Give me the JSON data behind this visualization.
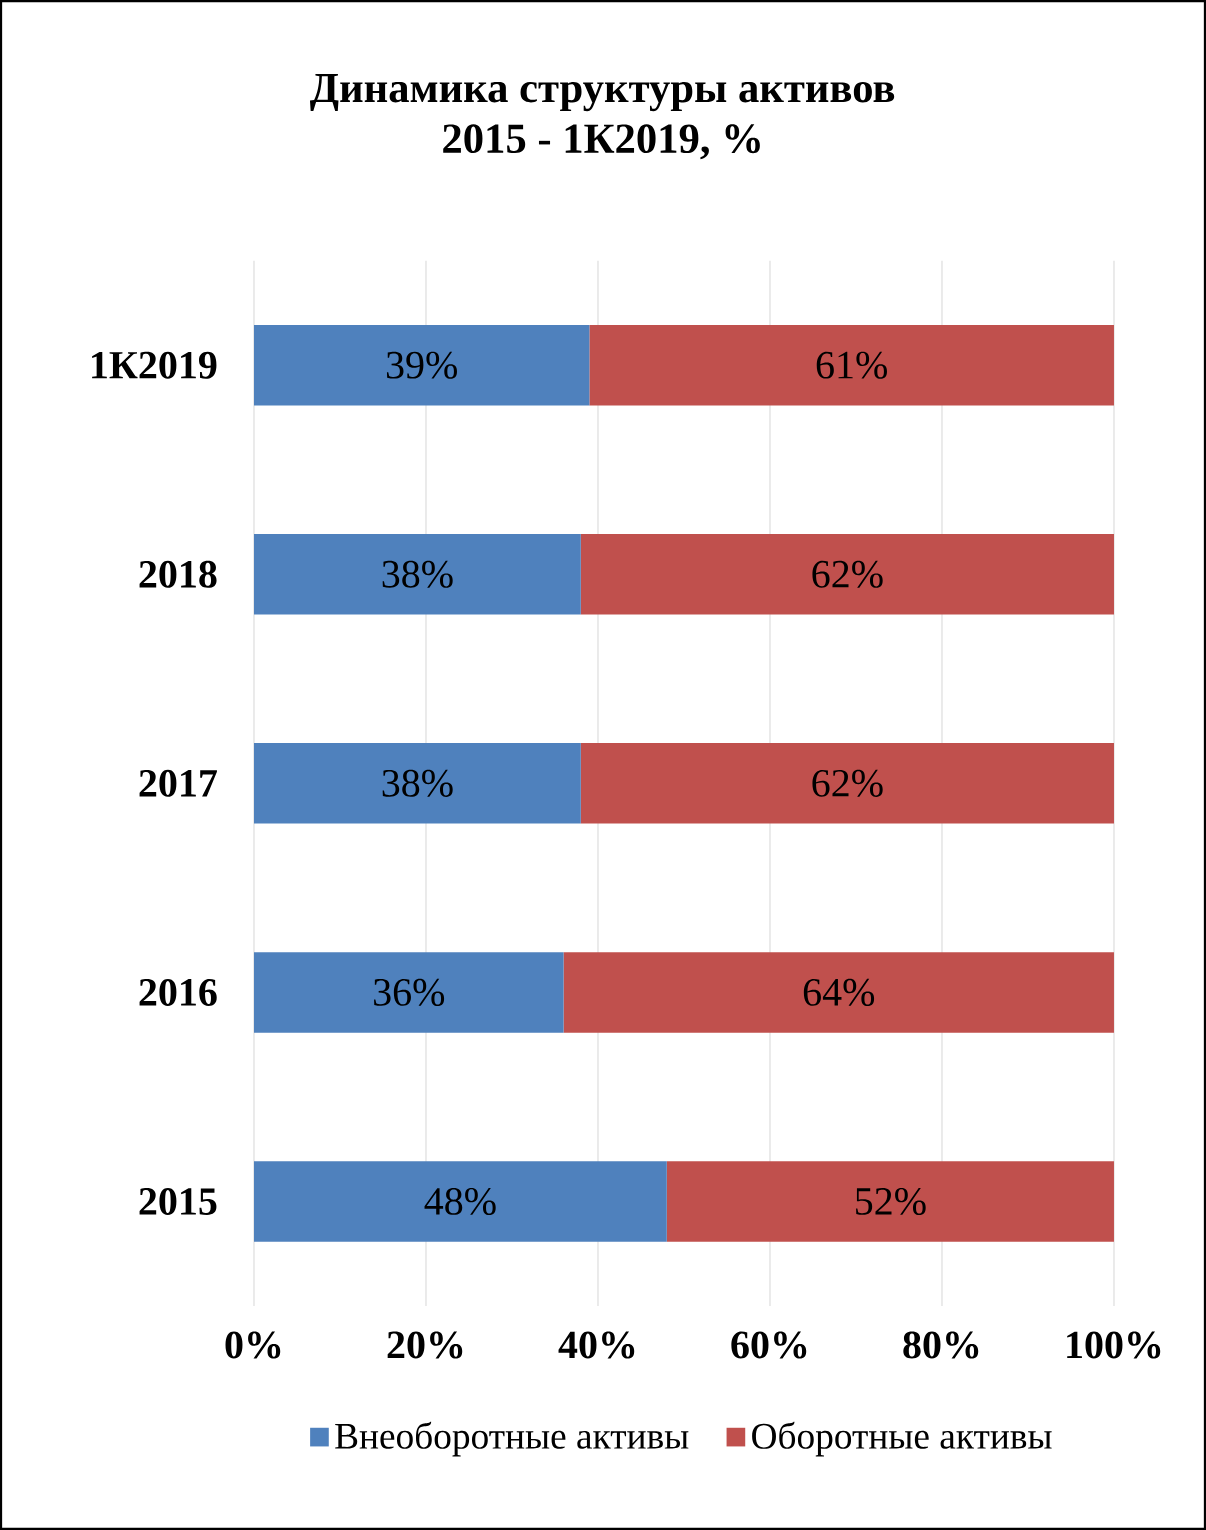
{
  "chart_data": {
    "type": "bar",
    "orientation": "horizontal",
    "stacked": true,
    "title": "Динамика структуры активов",
    "subtitle": "2015 - 1К2019, %",
    "categories": [
      "1К2019",
      "2018",
      "2017",
      "2016",
      "2015"
    ],
    "series": [
      {
        "name": "Внеоборотные активы",
        "color": "#4f81bd",
        "values": [
          39,
          38,
          38,
          36,
          48
        ],
        "value_labels": [
          "39%",
          "38%",
          "38%",
          "36%",
          "48%"
        ]
      },
      {
        "name": "Оборотные активы",
        "color": "#c0504d",
        "values": [
          61,
          62,
          62,
          64,
          52
        ],
        "value_labels": [
          "61%",
          "62%",
          "62%",
          "64%",
          "52%"
        ]
      }
    ],
    "xlim": [
      0,
      100
    ],
    "xticks": [
      {
        "value": 0,
        "label": "0%"
      },
      {
        "value": 20,
        "label": "20%"
      },
      {
        "value": 40,
        "label": "40%"
      },
      {
        "value": 60,
        "label": "60%"
      },
      {
        "value": 80,
        "label": "80%"
      },
      {
        "value": 100,
        "label": "100%"
      }
    ],
    "grid": "x",
    "legend": "bottom"
  }
}
